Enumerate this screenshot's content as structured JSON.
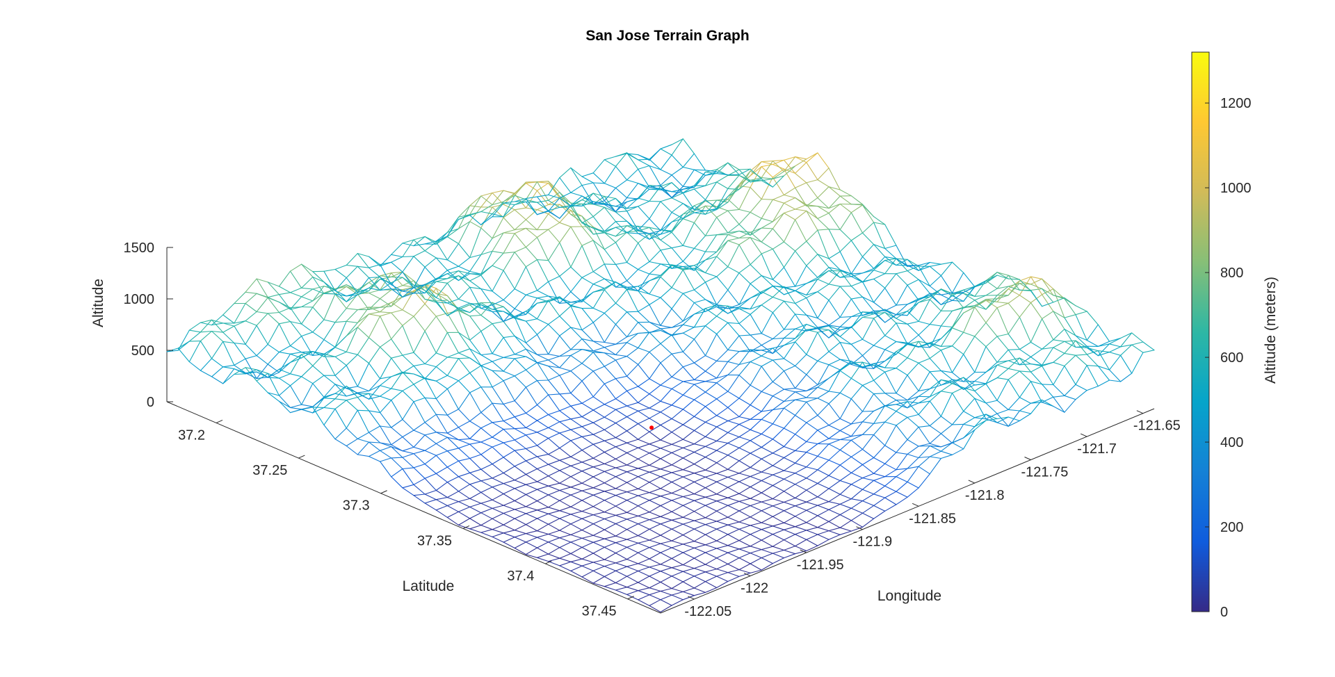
{
  "chart_data": {
    "type": "surface",
    "title": "San Jose Terrain Graph",
    "xlabel": "Latitude",
    "ylabel": "Longitude",
    "zlabel": "Altitude",
    "colorbar_label": "Altitude (meters)",
    "xticks": [
      "37.2",
      "37.25",
      "37.3",
      "37.35",
      "37.4",
      "37.45"
    ],
    "yticks": [
      "-122.05",
      "-122",
      "-121.95",
      "-121.9",
      "-121.85",
      "-121.8",
      "-121.75",
      "-121.7",
      "-121.65"
    ],
    "zticks": [
      "0",
      "500",
      "1000",
      "1500"
    ],
    "colorbar_ticks": [
      "0",
      "200",
      "400",
      "600",
      "800",
      "1000",
      "1200"
    ],
    "xlim": [
      37.17,
      37.47
    ],
    "ylim": [
      -122.08,
      -121.64
    ],
    "zlim": [
      0,
      1500
    ],
    "clim": [
      0,
      1320
    ],
    "colormap": "parula",
    "colormap_stops": [
      "#352a87",
      "#0f5cdd",
      "#1481d6",
      "#06a4ca",
      "#2eb7a4",
      "#87bf77",
      "#d1bb59",
      "#fec832",
      "#f9fb0e"
    ],
    "marker": {
      "latitude": 37.335,
      "longitude": -121.89,
      "altitude": 20,
      "color": "#ff0000"
    },
    "grid": "off",
    "colorbar_position": "right"
  }
}
